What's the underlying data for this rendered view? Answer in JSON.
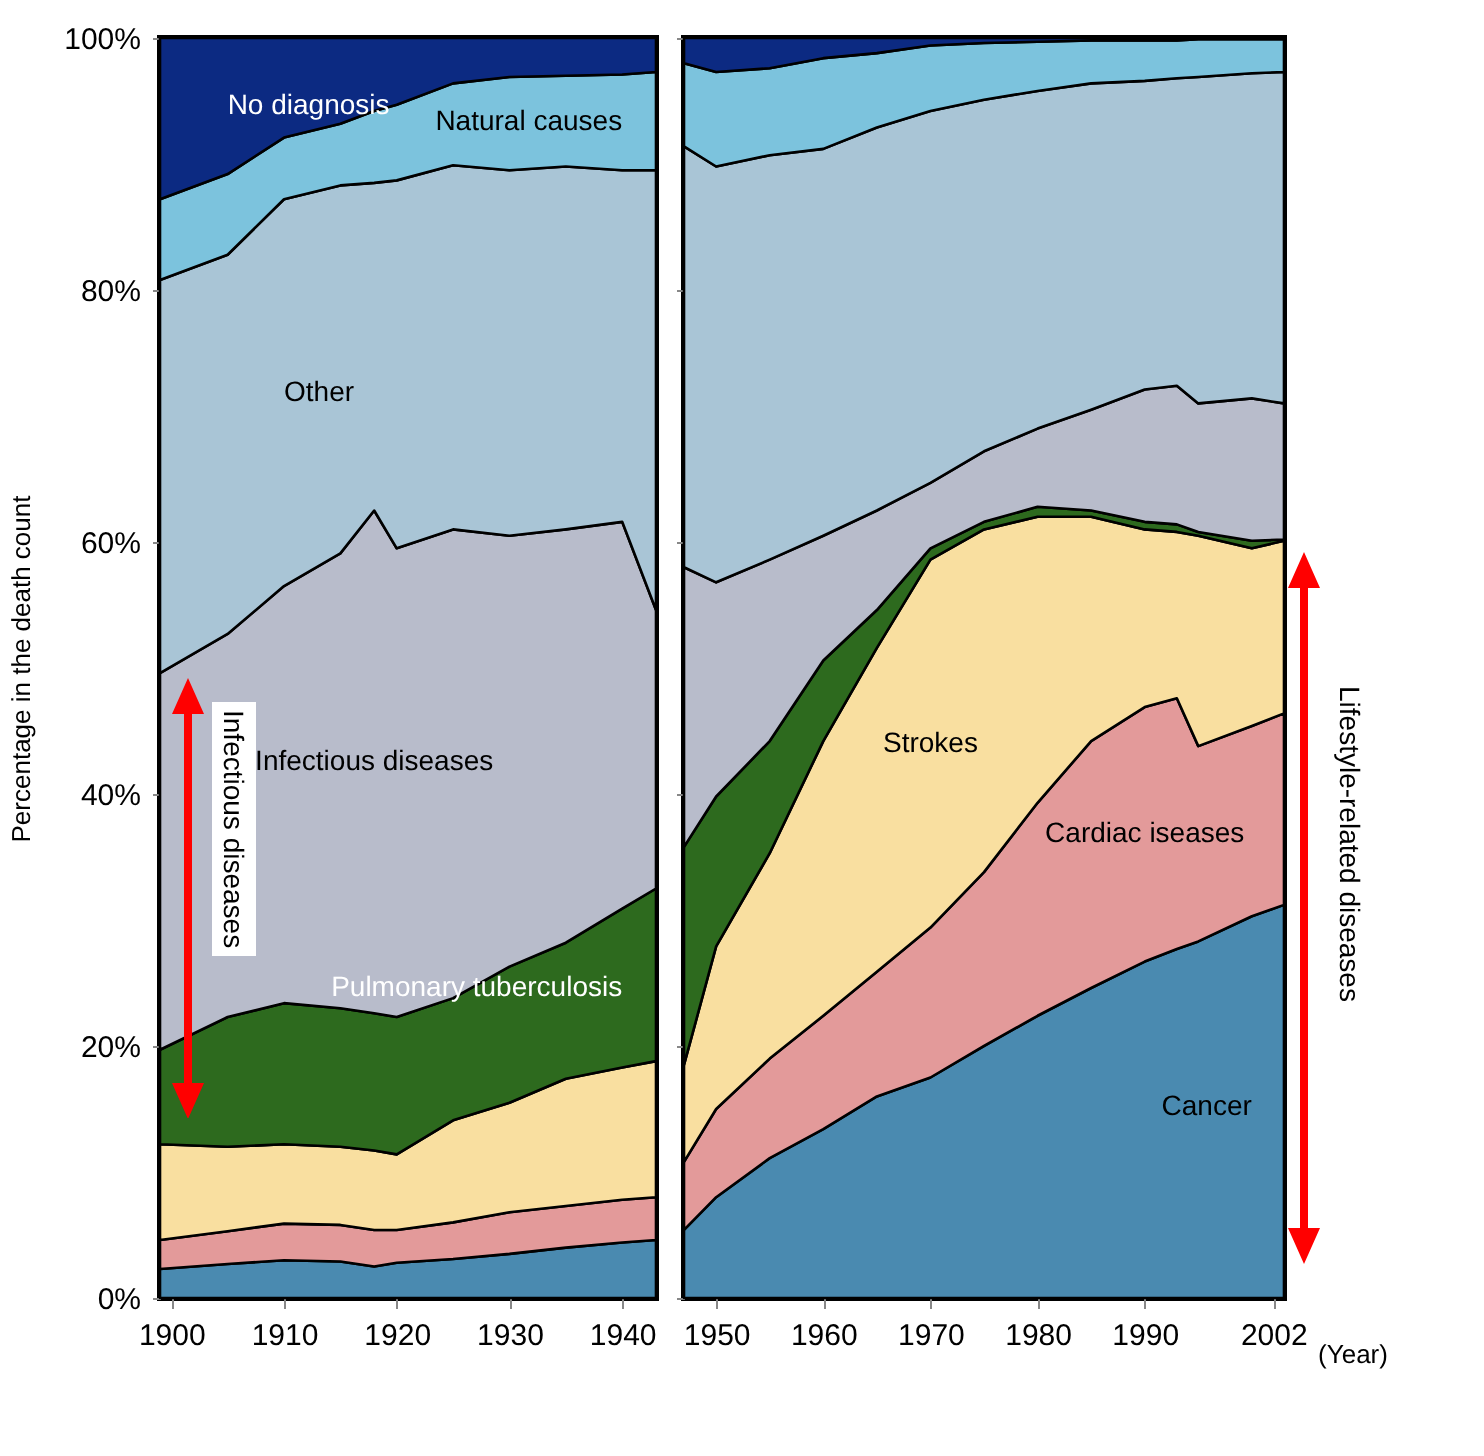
{
  "chart_data": [
    {
      "type": "area",
      "stacked": true,
      "ylabel": "Percentage in the death count",
      "x": [
        1899,
        1905,
        1910,
        1915,
        1918,
        1920,
        1925,
        1930,
        1935,
        1940,
        1943
      ],
      "xlim": [
        1899,
        1943
      ],
      "xticks": [
        1900,
        1910,
        1920,
        1930,
        1940
      ],
      "ylim": [
        0,
        100
      ],
      "yticks": [
        {
          "value": 0,
          "label": "0%"
        },
        {
          "value": 20,
          "label": "20%"
        },
        {
          "value": 40,
          "label": "40%"
        },
        {
          "value": 60,
          "label": "60%"
        },
        {
          "value": 80,
          "label": "80%"
        },
        {
          "value": 100,
          "label": "100%"
        }
      ],
      "annotations": [
        "Infectious diseases"
      ],
      "series": [
        {
          "color": "#4a8ab0",
          "values": [
            2.3,
            2.7,
            3.0,
            2.9,
            2.5,
            2.8,
            3.1,
            3.5,
            4.0,
            4.4,
            4.6
          ]
        },
        {
          "color": "#e39a9a",
          "values": [
            2.3,
            2.6,
            2.9,
            2.9,
            2.9,
            2.6,
            2.9,
            3.3,
            3.3,
            3.4,
            3.4
          ]
        },
        {
          "color": "#f9dfa0",
          "values": [
            7.6,
            6.7,
            6.3,
            6.2,
            6.3,
            6.0,
            8.1,
            8.7,
            10.1,
            10.5,
            10.8
          ]
        },
        {
          "name": "Pulmonary tuberculosis",
          "color": "#2d6a1e",
          "values": [
            7.5,
            10.3,
            11.2,
            11.0,
            10.9,
            10.9,
            9.7,
            10.8,
            10.8,
            12.6,
            13.7
          ]
        },
        {
          "name": "Infectious diseases",
          "color": "#b8bccb",
          "values": [
            29.9,
            30.4,
            33.1,
            36.1,
            39.9,
            37.2,
            37.2,
            34.2,
            32.8,
            30.7,
            22.1
          ]
        },
        {
          "name": "Other",
          "color": "#a9c5d6",
          "values": [
            31.2,
            30.1,
            30.7,
            29.2,
            26.0,
            29.2,
            28.9,
            29.0,
            28.8,
            27.9,
            34.9
          ]
        },
        {
          "name": "Natural causes",
          "color": "#7cc3dd",
          "values": [
            6.4,
            6.4,
            4.9,
            4.9,
            5.7,
            6.0,
            6.5,
            7.4,
            7.2,
            7.6,
            7.8
          ]
        },
        {
          "name": "No diagnosis",
          "color": "#0c2a82",
          "values": [
            12.8,
            10.8,
            7.9,
            6.8,
            5.8,
            5.3,
            3.6,
            3.1,
            3.0,
            2.9,
            2.7
          ]
        }
      ]
    },
    {
      "type": "area",
      "stacked": true,
      "xlabel": "(Year)",
      "tick_labels": "x",
      "x": [
        1947,
        1950,
        1955,
        1960,
        1965,
        1970,
        1975,
        1980,
        1985,
        1990,
        1993,
        1995,
        2000,
        2003
      ],
      "xlim": [
        1947,
        2003
      ],
      "xticks": [
        1950,
        1960,
        1970,
        1980,
        1990,
        2002
      ],
      "ylim": [
        0,
        100
      ],
      "yticks": [
        0,
        20,
        40,
        60,
        80,
        100
      ],
      "annotations": [
        "Lifestyle-related diseases"
      ],
      "series": [
        {
          "name": "Cancer",
          "color": "#4a8ab0",
          "values": [
            5.4,
            8.0,
            11.1,
            13.4,
            16.0,
            17.5,
            20.0,
            22.4,
            24.6,
            26.7,
            27.7,
            28.3,
            30.3,
            31.2
          ]
        },
        {
          "name": "Cardiac iseases",
          "color": "#e39a9a",
          "values": [
            5.4,
            7.0,
            7.9,
            9.0,
            9.9,
            11.9,
            13.8,
            16.9,
            19.6,
            20.2,
            19.9,
            15.5,
            15.1,
            15.2
          ]
        },
        {
          "name": "Strokes",
          "color": "#f9dfa0",
          "values": [
            7.7,
            12.9,
            16.3,
            21.8,
            25.7,
            29.2,
            27.2,
            22.7,
            17.8,
            14.1,
            13.2,
            16.7,
            14.1,
            13.7
          ]
        },
        {
          "color": "#2d6a1e",
          "values": [
            17.3,
            11.9,
            8.9,
            6.4,
            3.0,
            0.9,
            0.6,
            0.8,
            0.5,
            0.6,
            0.6,
            0.3,
            0.6,
            0.1
          ]
        },
        {
          "color": "#b8bccb",
          "values": [
            22.2,
            17.0,
            14.4,
            9.9,
            7.9,
            5.2,
            5.6,
            6.2,
            8.0,
            10.5,
            11.0,
            10.2,
            11.3,
            10.8
          ]
        },
        {
          "color": "#a9c5d6",
          "values": [
            33.4,
            33.0,
            32.1,
            30.7,
            30.4,
            29.5,
            27.9,
            26.8,
            25.9,
            24.5,
            24.4,
            25.9,
            25.8,
            26.3
          ]
        },
        {
          "color": "#7cc3dd",
          "values": [
            6.6,
            7.5,
            6.9,
            7.2,
            5.9,
            5.2,
            4.5,
            3.9,
            3.4,
            3.2,
            3.0,
            3.0,
            2.7,
            2.6
          ]
        },
        {
          "color": "#0c2a82",
          "values": [
            2.0,
            2.7,
            2.4,
            1.6,
            1.2,
            0.6,
            0.4,
            0.3,
            0.2,
            0.2,
            0.2,
            0.1,
            0.1,
            0.1
          ]
        }
      ]
    }
  ]
}
